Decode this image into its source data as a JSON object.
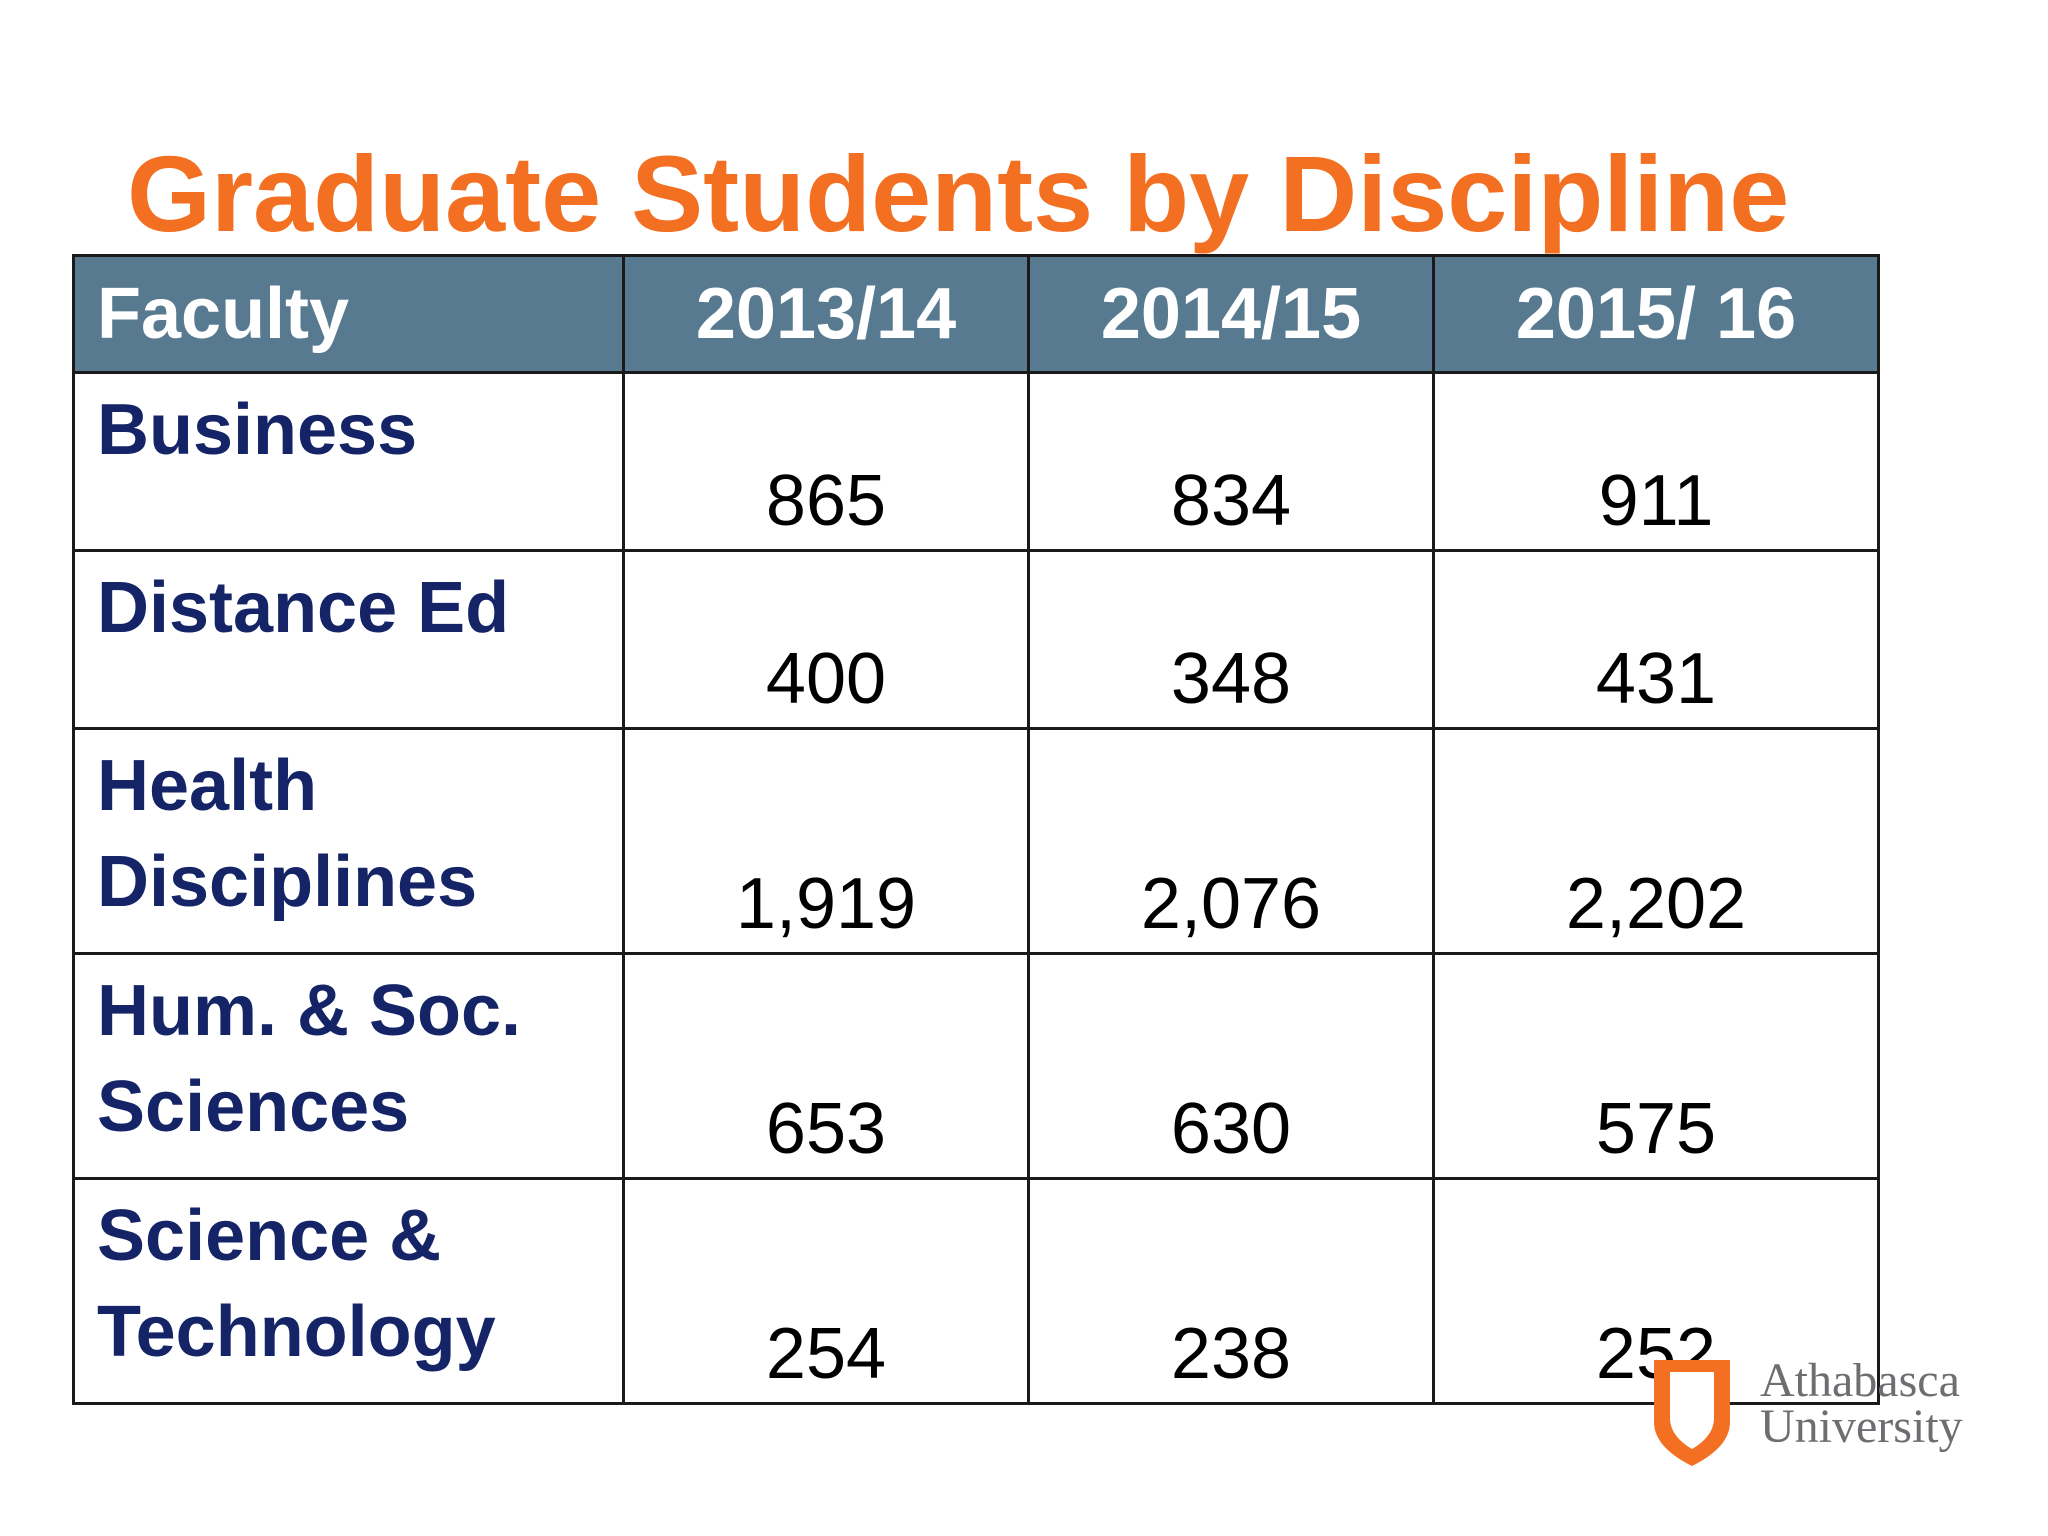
{
  "title": "Graduate Students by Discipline",
  "colors": {
    "title": "#f36f21",
    "header_bg": "#587a91",
    "header_text": "#ffffff",
    "faculty_text": "#142466",
    "value_text": "#000000",
    "logo_orange": "#f36f21",
    "logo_text": "#6d6e71"
  },
  "table": {
    "headers": [
      "Faculty",
      "2013/14",
      "2014/15",
      "2015/ 16"
    ],
    "rows": [
      {
        "faculty_lines": [
          "Business"
        ],
        "values": [
          "865",
          "834",
          "911"
        ]
      },
      {
        "faculty_lines": [
          "Distance Ed"
        ],
        "values": [
          "400",
          "348",
          "431"
        ]
      },
      {
        "faculty_lines": [
          "Health",
          "Disciplines"
        ],
        "values": [
          "1,919",
          "2,076",
          "2,202"
        ]
      },
      {
        "faculty_lines": [
          "Hum. & Soc.",
          "Sciences"
        ],
        "values": [
          "653",
          "630",
          "575"
        ]
      },
      {
        "faculty_lines": [
          "Science &",
          "Technology"
        ],
        "values": [
          "254",
          "238",
          "252"
        ]
      }
    ]
  },
  "logo": {
    "icon": "shield-icon",
    "line1": "Athabasca",
    "line2": "University"
  }
}
